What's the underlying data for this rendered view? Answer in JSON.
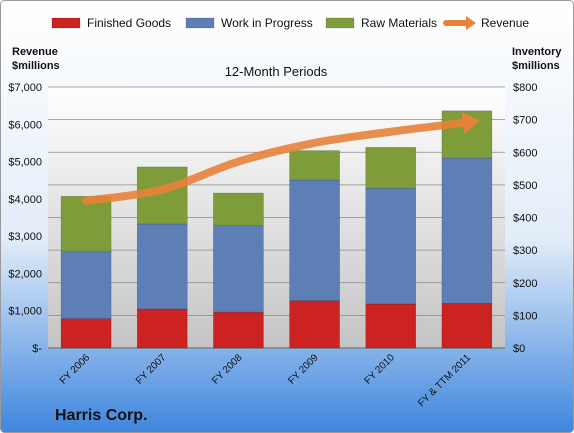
{
  "company": "Harris Corp.",
  "chart_data": {
    "type": "bar",
    "title": "12-Month Periods",
    "left_axis_label": [
      "Revenue",
      "$millions"
    ],
    "right_axis_label": [
      "Inventory",
      "$millions"
    ],
    "categories": [
      "FY 2006",
      "FY 2007",
      "FY 2008",
      "FY 2009",
      "FY 2010",
      "FY & TTM 2011"
    ],
    "stacked": true,
    "series": [
      {
        "name": "Finished Goods",
        "axis": "right",
        "color": "#cc2222",
        "values": [
          90,
          120,
          110,
          145,
          135,
          137
        ]
      },
      {
        "name": "Work in Progress",
        "axis": "right",
        "color": "#5d7fb6",
        "values": [
          205,
          260,
          265,
          370,
          355,
          445
        ]
      },
      {
        "name": "Raw Materials",
        "axis": "right",
        "color": "#7f9c3a",
        "values": [
          170,
          175,
          100,
          90,
          125,
          145
        ]
      },
      {
        "name": "Revenue",
        "axis": "left",
        "type": "line",
        "color": "#e8823a",
        "values": [
          3950,
          4250,
          5000,
          5500,
          5800,
          6050
        ]
      }
    ],
    "left_axis": {
      "min": 0,
      "max": 7000,
      "ticks": [
        "$-",
        "$1,000",
        "$2,000",
        "$3,000",
        "$4,000",
        "$5,000",
        "$6,000",
        "$7,000"
      ]
    },
    "right_axis": {
      "min": 0,
      "max": 800,
      "ticks": [
        "$0",
        "$100",
        "$200",
        "$300",
        "$400",
        "$500",
        "$600",
        "$700",
        "$800"
      ]
    },
    "legend_position": "top",
    "grid": true
  }
}
